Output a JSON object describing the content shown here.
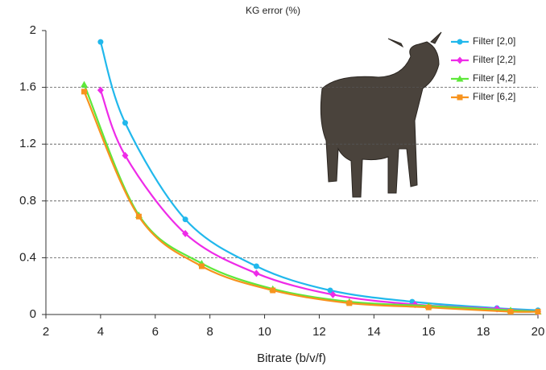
{
  "chart_data": {
    "type": "line",
    "title": "KG error (%)",
    "x_label": "Bitrate (b/v/f)",
    "xlim": [
      2,
      20
    ],
    "xticks": [
      2,
      4,
      6,
      8,
      10,
      12,
      14,
      16,
      18,
      20
    ],
    "ylim": [
      0,
      2
    ],
    "yticks": [
      0,
      0.4,
      0.8,
      1.2,
      1.6,
      2
    ],
    "grid": true,
    "legend": "upper right",
    "series": [
      {
        "name": "Filter [2,0]",
        "color": "#21b8ec",
        "marker": "circle",
        "x": [
          4.0,
          4.9,
          7.1,
          9.7,
          12.4,
          15.4,
          18.5,
          20
        ],
        "values": [
          1.92,
          1.35,
          0.67,
          0.34,
          0.17,
          0.09,
          0.045,
          0.03
        ]
      },
      {
        "name": "Filter [2,2]",
        "color": "#ee2be8",
        "marker": "diamond",
        "x": [
          4.0,
          4.9,
          7.1,
          9.7,
          12.5,
          15.5,
          18.5,
          20
        ],
        "values": [
          1.58,
          1.12,
          0.57,
          0.29,
          0.14,
          0.07,
          0.04,
          0.02
        ]
      },
      {
        "name": "Filter [4,2]",
        "color": "#5ee83a",
        "marker": "triangle",
        "x": [
          3.4,
          5.4,
          7.7,
          10.3,
          13.1,
          16.0,
          19.0,
          20
        ],
        "values": [
          1.62,
          0.7,
          0.36,
          0.18,
          0.09,
          0.06,
          0.03,
          0.02
        ]
      },
      {
        "name": "Filter [6,2]",
        "color": "#f7931e",
        "marker": "square",
        "x": [
          3.4,
          5.4,
          7.7,
          10.3,
          13.1,
          16.0,
          19.0,
          20
        ],
        "values": [
          1.57,
          0.69,
          0.34,
          0.17,
          0.08,
          0.05,
          0.02,
          0.02
        ]
      }
    ]
  }
}
